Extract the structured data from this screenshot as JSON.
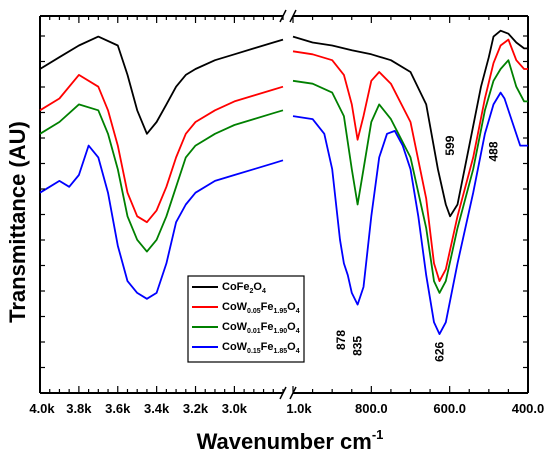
{
  "chart_data": {
    "type": "line",
    "title": "",
    "xlabel": "Wavenumber cm",
    "xlabel_superscript": "-1",
    "ylabel": "Transmittance (AU)",
    "x_axis": "broken, reversed",
    "x_segments": [
      {
        "range": [
          4000,
          2750
        ],
        "tick_values": [
          4000,
          3800,
          3600,
          3400,
          3200,
          3000
        ],
        "tick_labels": [
          "4.0k",
          "3.8k",
          "3.6k",
          "3.4k",
          "3.2k",
          "3.0k"
        ]
      },
      {
        "range": [
          1000,
          400
        ],
        "tick_values": [
          1000,
          800,
          600,
          400
        ],
        "tick_labels": [
          "1.0k",
          "800.0",
          "600.0",
          "400.0"
        ]
      }
    ],
    "y_ticks_labeled": false,
    "grid": false,
    "legend_position": "center-right",
    "series": [
      {
        "name": "CoFe2O4",
        "label_parts": [
          [
            "CoFe",
            ""
          ],
          [
            "2",
            "sub"
          ],
          [
            "O",
            ""
          ],
          [
            "4",
            "sub"
          ]
        ],
        "color": "#000000",
        "segments": [
          [
            [
              4000,
              0.93
            ],
            [
              3900,
              0.95
            ],
            [
              3800,
              0.97
            ],
            [
              3700,
              0.985
            ],
            [
              3600,
              0.97
            ],
            [
              3550,
              0.92
            ],
            [
              3500,
              0.86
            ],
            [
              3450,
              0.82
            ],
            [
              3400,
              0.84
            ],
            [
              3350,
              0.87
            ],
            [
              3300,
              0.9
            ],
            [
              3250,
              0.92
            ],
            [
              3200,
              0.93
            ],
            [
              3100,
              0.945
            ],
            [
              3000,
              0.955
            ],
            [
              2900,
              0.965
            ],
            [
              2800,
              0.975
            ],
            [
              2750,
              0.98
            ]
          ],
          [
            [
              1000,
              0.985
            ],
            [
              950,
              0.975
            ],
            [
              900,
              0.97
            ],
            [
              850,
              0.962
            ],
            [
              800,
              0.955
            ],
            [
              750,
              0.945
            ],
            [
              700,
              0.925
            ],
            [
              660,
              0.87
            ],
            [
              630,
              0.76
            ],
            [
              610,
              0.7
            ],
            [
              599,
              0.68
            ],
            [
              580,
              0.7
            ],
            [
              550,
              0.8
            ],
            [
              520,
              0.9
            ],
            [
              500,
              0.95
            ],
            [
              488,
              0.985
            ],
            [
              470,
              0.995
            ],
            [
              450,
              0.99
            ],
            [
              430,
              0.975
            ],
            [
              410,
              0.965
            ],
            [
              400,
              0.965
            ]
          ]
        ]
      },
      {
        "name": "CoW0.05Fe1.95O4",
        "label_parts": [
          [
            "CoW",
            ""
          ],
          [
            "0.05",
            "sub"
          ],
          [
            "Fe",
            ""
          ],
          [
            "1.95",
            "sub"
          ],
          [
            "O",
            ""
          ],
          [
            "4",
            "sub"
          ]
        ],
        "color": "#ff0000",
        "segments": [
          [
            [
              4000,
              0.86
            ],
            [
              3900,
              0.88
            ],
            [
              3800,
              0.92
            ],
            [
              3700,
              0.9
            ],
            [
              3650,
              0.86
            ],
            [
              3600,
              0.8
            ],
            [
              3550,
              0.72
            ],
            [
              3500,
              0.68
            ],
            [
              3450,
              0.67
            ],
            [
              3400,
              0.69
            ],
            [
              3350,
              0.73
            ],
            [
              3300,
              0.78
            ],
            [
              3250,
              0.82
            ],
            [
              3200,
              0.84
            ],
            [
              3100,
              0.86
            ],
            [
              3000,
              0.875
            ],
            [
              2900,
              0.885
            ],
            [
              2800,
              0.895
            ],
            [
              2750,
              0.9
            ]
          ],
          [
            [
              1000,
              0.96
            ],
            [
              950,
              0.955
            ],
            [
              900,
              0.945
            ],
            [
              870,
              0.92
            ],
            [
              850,
              0.87
            ],
            [
              835,
              0.81
            ],
            [
              820,
              0.85
            ],
            [
              800,
              0.91
            ],
            [
              780,
              0.925
            ],
            [
              750,
              0.905
            ],
            [
              700,
              0.84
            ],
            [
              660,
              0.71
            ],
            [
              640,
              0.6
            ],
            [
              626,
              0.57
            ],
            [
              610,
              0.59
            ],
            [
              580,
              0.68
            ],
            [
              540,
              0.78
            ],
            [
              510,
              0.88
            ],
            [
              488,
              0.94
            ],
            [
              470,
              0.97
            ],
            [
              450,
              0.98
            ],
            [
              430,
              0.945
            ],
            [
              410,
              0.93
            ],
            [
              400,
              0.93
            ]
          ]
        ]
      },
      {
        "name": "CoW0.01Fe1.90O4",
        "label_parts": [
          [
            "CoW",
            ""
          ],
          [
            "0.01",
            "sub"
          ],
          [
            "Fe",
            ""
          ],
          [
            "1.90",
            "sub"
          ],
          [
            "O",
            ""
          ],
          [
            "4",
            "sub"
          ]
        ],
        "color": "#008000",
        "segments": [
          [
            [
              4000,
              0.82
            ],
            [
              3900,
              0.84
            ],
            [
              3800,
              0.87
            ],
            [
              3700,
              0.86
            ],
            [
              3650,
              0.82
            ],
            [
              3600,
              0.76
            ],
            [
              3550,
              0.68
            ],
            [
              3500,
              0.64
            ],
            [
              3450,
              0.62
            ],
            [
              3400,
              0.64
            ],
            [
              3350,
              0.68
            ],
            [
              3300,
              0.73
            ],
            [
              3250,
              0.78
            ],
            [
              3200,
              0.8
            ],
            [
              3100,
              0.82
            ],
            [
              3000,
              0.835
            ],
            [
              2900,
              0.845
            ],
            [
              2800,
              0.855
            ],
            [
              2750,
              0.86
            ]
          ],
          [
            [
              1000,
              0.91
            ],
            [
              950,
              0.905
            ],
            [
              900,
              0.89
            ],
            [
              870,
              0.85
            ],
            [
              850,
              0.76
            ],
            [
              835,
              0.7
            ],
            [
              820,
              0.76
            ],
            [
              800,
              0.84
            ],
            [
              780,
              0.87
            ],
            [
              750,
              0.845
            ],
            [
              700,
              0.78
            ],
            [
              660,
              0.66
            ],
            [
              640,
              0.57
            ],
            [
              626,
              0.55
            ],
            [
              610,
              0.57
            ],
            [
              580,
              0.66
            ],
            [
              540,
              0.76
            ],
            [
              510,
              0.86
            ],
            [
              488,
              0.91
            ],
            [
              470,
              0.93
            ],
            [
              450,
              0.945
            ],
            [
              430,
              0.9
            ],
            [
              410,
              0.875
            ],
            [
              400,
              0.875
            ]
          ]
        ]
      },
      {
        "name": "CoW0.15Fe1.85O4",
        "label_parts": [
          [
            "CoW",
            ""
          ],
          [
            "0.15",
            "sub"
          ],
          [
            "Fe",
            ""
          ],
          [
            "1.85",
            "sub"
          ],
          [
            "O",
            ""
          ],
          [
            "4",
            "sub"
          ]
        ],
        "color": "#0000ff",
        "segments": [
          [
            [
              4000,
              0.72
            ],
            [
              3950,
              0.73
            ],
            [
              3900,
              0.74
            ],
            [
              3850,
              0.73
            ],
            [
              3800,
              0.75
            ],
            [
              3750,
              0.8
            ],
            [
              3700,
              0.78
            ],
            [
              3650,
              0.72
            ],
            [
              3600,
              0.63
            ],
            [
              3550,
              0.57
            ],
            [
              3500,
              0.55
            ],
            [
              3450,
              0.54
            ],
            [
              3400,
              0.55
            ],
            [
              3350,
              0.6
            ],
            [
              3300,
              0.67
            ],
            [
              3250,
              0.7
            ],
            [
              3200,
              0.72
            ],
            [
              3100,
              0.74
            ],
            [
              3000,
              0.75
            ],
            [
              2900,
              0.76
            ],
            [
              2800,
              0.77
            ],
            [
              2750,
              0.775
            ]
          ],
          [
            [
              1000,
              0.85
            ],
            [
              950,
              0.845
            ],
            [
              920,
              0.82
            ],
            [
              900,
              0.76
            ],
            [
              880,
              0.64
            ],
            [
              870,
              0.6
            ],
            [
              860,
              0.58
            ],
            [
              850,
              0.55
            ],
            [
              835,
              0.53
            ],
            [
              820,
              0.56
            ],
            [
              800,
              0.68
            ],
            [
              780,
              0.78
            ],
            [
              760,
              0.82
            ],
            [
              740,
              0.825
            ],
            [
              720,
              0.8
            ],
            [
              700,
              0.76
            ],
            [
              680,
              0.68
            ],
            [
              660,
              0.58
            ],
            [
              640,
              0.5
            ],
            [
              626,
              0.48
            ],
            [
              610,
              0.5
            ],
            [
              580,
              0.6
            ],
            [
              540,
              0.72
            ],
            [
              510,
              0.82
            ],
            [
              488,
              0.87
            ],
            [
              470,
              0.89
            ],
            [
              460,
              0.88
            ],
            [
              440,
              0.84
            ],
            [
              420,
              0.8
            ],
            [
              400,
              0.8
            ]
          ]
        ]
      }
    ],
    "annotations": [
      {
        "text": "599",
        "x": 599,
        "y": 0.8,
        "rotate": -90
      },
      {
        "text": "488",
        "x": 488,
        "y": 0.79,
        "rotate": -90
      },
      {
        "text": "878",
        "x": 878,
        "y": 0.47,
        "rotate": -90
      },
      {
        "text": "835",
        "x": 835,
        "y": 0.46,
        "rotate": -90
      },
      {
        "text": "626",
        "x": 626,
        "y": 0.45,
        "rotate": -90
      }
    ]
  }
}
